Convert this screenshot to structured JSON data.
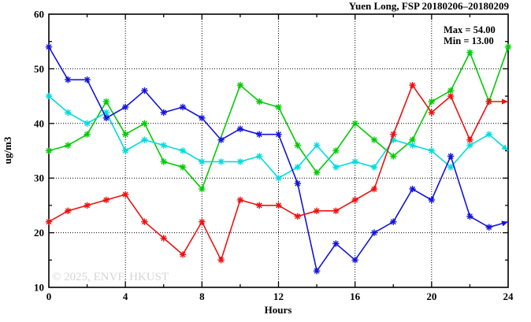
{
  "title": "Yuen Long, FSP 20180206–20180209",
  "annotation": {
    "max_label": "Max = 54.00",
    "min_label": "Min = 13.00"
  },
  "watermark": "© 2025, ENVF, HKUST",
  "chart_data": {
    "type": "line",
    "title": "Yuen Long, FSP 20180206–20180209",
    "xlabel": "Hours",
    "ylabel": "ug/m3",
    "xlim": [
      0,
      24
    ],
    "ylim": [
      10,
      60
    ],
    "x_major_ticks": [
      0,
      4,
      8,
      12,
      16,
      20,
      24
    ],
    "x_minor_ticks": [
      2,
      6,
      10,
      14,
      18,
      22
    ],
    "y_major_ticks": [
      10,
      20,
      30,
      40,
      50,
      60
    ],
    "y_minor_ticks": [
      15,
      25,
      35,
      45,
      55
    ],
    "grid": "dotted black lines at major ticks, full border box with mirrored inward ticks",
    "legend": "none",
    "marker": "star",
    "x": [
      0,
      1,
      2,
      3,
      4,
      5,
      6,
      7,
      8,
      9,
      10,
      11,
      12,
      13,
      14,
      15,
      16,
      17,
      18,
      19,
      20,
      21,
      22,
      23,
      24
    ],
    "series": [
      {
        "name": "green",
        "color": "#00cc00",
        "arrow_end": false,
        "values": [
          35,
          36,
          38,
          44,
          38,
          40,
          33,
          32,
          28,
          null,
          47,
          44,
          43,
          36,
          31,
          35,
          40,
          37,
          34,
          37,
          44,
          46,
          53,
          44,
          54
        ]
      },
      {
        "name": "cyan",
        "color": "#00dcdc",
        "arrow_end": true,
        "values": [
          45,
          42,
          40,
          42,
          35,
          37,
          36,
          35,
          33,
          33,
          33,
          34,
          30,
          32,
          36,
          32,
          33,
          32,
          37,
          36,
          35,
          32,
          36,
          38,
          35
        ]
      },
      {
        "name": "blue",
        "color": "#1414dc",
        "arrow_end": true,
        "values": [
          54,
          48,
          48,
          41,
          43,
          46,
          42,
          43,
          41,
          37,
          39,
          38,
          38,
          29,
          13,
          18,
          15,
          20,
          22,
          28,
          26,
          34,
          23,
          21,
          22
        ]
      },
      {
        "name": "red",
        "color": "#ee1111",
        "arrow_end": true,
        "values": [
          22,
          24,
          25,
          26,
          27,
          22,
          19,
          16,
          22,
          15,
          26,
          25,
          25,
          23,
          24,
          24,
          26,
          28,
          38,
          47,
          42,
          45,
          37,
          44,
          44
        ]
      }
    ],
    "stats": {
      "max": 54.0,
      "min": 13.0
    }
  }
}
